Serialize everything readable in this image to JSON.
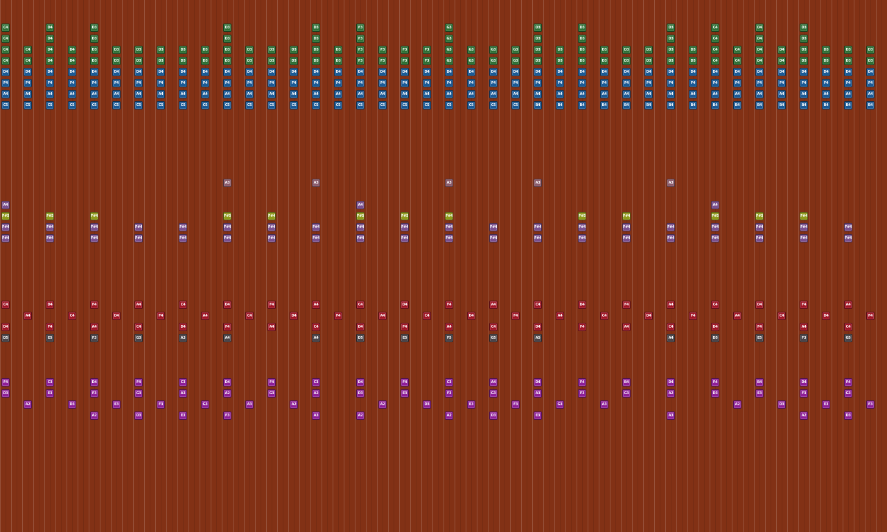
{
  "colors": {
    "background": "#823115",
    "green": "#2d7034",
    "blue": "#1a5a96",
    "olive": "#8e9a1a",
    "lavender": "#7a4f8e",
    "mauve": "#8a5a6a",
    "red": "#a11525",
    "gray": "#4a4347",
    "magenta": "#8e1e98"
  },
  "columns_per_screen": 40,
  "columns": [
    [
      "C4:green",
      "C4:green",
      "C4:green",
      "C4:green",
      "D4:blue",
      "F4:blue",
      "A4:blue",
      "C5:blue",
      "F#5:olive",
      "A4:lavender",
      "F#4:lavender",
      "F#4:lavender",
      "C4:red",
      "D4:red",
      "D5:gray",
      "F4:magenta",
      "D3:magenta"
    ],
    [
      "C4:green",
      "C4:green",
      "D4:blue",
      "F4:blue",
      "A4:blue",
      "C5:blue",
      "A4:red",
      "A2:magenta"
    ],
    [
      "D4:green",
      "D4:green",
      "D4:green",
      "D4:green",
      "D4:blue",
      "F4:blue",
      "A4:blue",
      "C5:blue",
      "F#5:olive",
      "F#4:lavender",
      "F#4:lavender",
      "D4:red",
      "F4:red",
      "E5:gray",
      "C3:magenta",
      "E3:magenta"
    ],
    [
      "D4:green",
      "D4:green",
      "D4:blue",
      "F4:blue",
      "A4:blue",
      "C5:blue",
      "C4:red",
      "D3:magenta"
    ],
    [
      "D3:green",
      "D3:green",
      "D3:green",
      "D3:green",
      "D4:blue",
      "F4:blue",
      "A4:blue",
      "C5:blue",
      "F#4:olive",
      "F#4:lavender",
      "F#4:lavender",
      "F4:red",
      "A4:red",
      "F3:gray",
      "D4:magenta",
      "F3:magenta",
      "A2:magenta"
    ],
    [
      "D3:green",
      "D3:green",
      "D4:blue",
      "F4:blue",
      "A4:blue",
      "C5:blue",
      "D4:red",
      "E3:magenta"
    ],
    [
      "D3:green",
      "D3:green",
      "D4:blue",
      "F4:blue",
      "A4:blue",
      "C5:blue",
      "F#4:lavender",
      "F#4:lavender",
      "A4:red",
      "C4:red",
      "G3:gray",
      "F4:magenta",
      "G3:magenta",
      "D3:magenta"
    ],
    [
      "D3:green",
      "D3:green",
      "D4:blue",
      "F4:blue",
      "A4:blue",
      "C5:blue",
      "F4:red",
      "F3:magenta"
    ],
    [
      "D3:green",
      "D3:green",
      "D4:blue",
      "F4:blue",
      "A4:blue",
      "C5:blue",
      "F#4:lavender",
      "F#4:lavender",
      "C4:red",
      "D4:red",
      "A3:gray",
      "C3:magenta",
      "A3:magenta",
      "E3:magenta"
    ],
    [
      "D3:green",
      "D3:green",
      "D4:blue",
      "F4:blue",
      "A4:blue",
      "C5:blue",
      "A4:red",
      "G3:magenta"
    ],
    [
      "D3:green",
      "D3:green",
      "D3:green",
      "D3:green",
      "D4:blue",
      "F4:blue",
      "A4:blue",
      "C5:blue",
      "A3:mauve",
      "F#5:olive",
      "F#4:lavender",
      "F#4:lavender",
      "D4:red",
      "F4:red",
      "A4:gray",
      "D4:magenta",
      "A2:magenta",
      "F3:magenta"
    ],
    [
      "D3:green",
      "D3:green",
      "D4:blue",
      "F4:blue",
      "A4:blue",
      "C5:blue",
      "C4:red",
      "A3:magenta"
    ],
    [
      "D3:green",
      "D3:green",
      "D4:blue",
      "F4:blue",
      "A4:blue",
      "C5:blue",
      "F#4:olive",
      "F#4:lavender",
      "F#4:lavender",
      "F4:red",
      "A4:red",
      "F4:magenta",
      "G3:magenta"
    ],
    [
      "D3:green",
      "D3:green",
      "D4:blue",
      "F4:blue",
      "A4:blue",
      "C5:blue",
      "D4:red",
      "A2:magenta"
    ],
    [
      "D3:green",
      "D3:green",
      "D3:green",
      "D3:green",
      "D4:blue",
      "F4:blue",
      "A4:blue",
      "C5:blue",
      "A3:mauve",
      "F#4:lavender",
      "F#4:lavender",
      "A4:red",
      "C4:red",
      "A4:gray",
      "C3:magenta",
      "A2:magenta",
      "A3:magenta"
    ],
    [
      "D3:green",
      "D3:green",
      "D4:blue",
      "F4:blue",
      "A4:blue",
      "C5:blue",
      "F4:red"
    ],
    [
      "F3:green",
      "F3:green",
      "F3:green",
      "F3:green",
      "D4:blue",
      "F4:blue",
      "A4:blue",
      "C5:blue",
      "F#5:olive",
      "A4:lavender",
      "F#4:lavender",
      "F#4:lavender",
      "C4:red",
      "D4:red",
      "D5:gray",
      "D4:magenta",
      "D3:magenta",
      "A2:magenta"
    ],
    [
      "F3:green",
      "F3:green",
      "D4:blue",
      "F4:blue",
      "A4:blue",
      "C5:blue",
      "A4:red",
      "A2:magenta"
    ],
    [
      "F3:green",
      "F3:green",
      "D4:blue",
      "F4:blue",
      "A4:blue",
      "C5:blue",
      "F#5:olive",
      "F#4:lavender",
      "F#4:lavender",
      "D4:red",
      "F4:red",
      "E5:gray",
      "F4:magenta",
      "E3:magenta"
    ],
    [
      "F3:green",
      "F3:green",
      "D4:blue",
      "F4:blue",
      "A4:blue",
      "C5:blue",
      "C4:red",
      "D3:magenta"
    ],
    [
      "G3:green",
      "G3:green",
      "G3:green",
      "G3:green",
      "D4:blue",
      "F4:blue",
      "A4:blue",
      "C5:blue",
      "A3:mauve",
      "F#4:olive",
      "F#4:lavender",
      "F#4:lavender",
      "F4:red",
      "A4:red",
      "F5:gray",
      "C3:magenta",
      "F3:magenta",
      "A2:magenta"
    ],
    [
      "G3:green",
      "G3:green",
      "D4:blue",
      "F4:blue",
      "A4:blue",
      "C5:blue",
      "D4:red",
      "E3:magenta"
    ],
    [
      "G3:green",
      "G3:green",
      "D4:blue",
      "F4:blue",
      "A4:blue",
      "C5:blue",
      "F#4:lavender",
      "F#4:lavender",
      "A4:red",
      "C4:red",
      "G5:gray",
      "A4:magenta",
      "G3:magenta",
      "D3:magenta"
    ],
    [
      "G3:green",
      "G3:green",
      "D4:blue",
      "F4:blue",
      "A4:blue",
      "C5:blue",
      "F4:red",
      "F3:magenta"
    ],
    [
      "D3:green",
      "D3:green",
      "D3:green",
      "D3:green",
      "D4:blue",
      "F4:blue",
      "A4:blue",
      "B4:blue",
      "A3:mauve",
      "F#4:lavender",
      "F#4:lavender",
      "C4:red",
      "D4:red",
      "A5:gray",
      "D4:magenta",
      "A3:magenta",
      "E3:magenta"
    ],
    [
      "D3:green",
      "D3:green",
      "D4:blue",
      "F4:blue",
      "A4:blue",
      "B4:blue",
      "A4:red",
      "G3:magenta"
    ],
    [
      "D3:green",
      "D3:green",
      "D3:green",
      "D3:green",
      "D4:blue",
      "F4:blue",
      "A4:blue",
      "B4:blue",
      "F#5:olive",
      "F#4:lavender",
      "F#4:lavender",
      "D4:red",
      "F4:red",
      "F4:magenta",
      "F3:magenta"
    ],
    [
      "D3:green",
      "D3:green",
      "D4:blue",
      "F4:blue",
      "A4:blue",
      "B4:blue",
      "C4:red",
      "A3:magenta"
    ],
    [
      "D3:green",
      "D3:green",
      "D4:blue",
      "F4:blue",
      "A4:blue",
      "B4:blue",
      "F#4:olive",
      "F#4:lavender",
      "F#4:lavender",
      "F4:red",
      "A4:red",
      "B4:magenta",
      "G3:magenta"
    ],
    [
      "D3:green",
      "D3:green",
      "D4:blue",
      "F4:blue",
      "A4:blue",
      "B4:blue",
      "D4:red"
    ],
    [
      "D3:green",
      "D3:green",
      "D3:green",
      "D3:green",
      "D4:blue",
      "F4:blue",
      "A4:blue",
      "B4:blue",
      "A3:mauve",
      "F#4:lavender",
      "F#4:lavender",
      "A4:red",
      "C4:red",
      "A4:gray",
      "D4:magenta",
      "A2:magenta",
      "A3:magenta"
    ],
    [
      "D3:green",
      "D3:green",
      "D4:blue",
      "F4:blue",
      "A4:blue",
      "B4:blue",
      "F4:red"
    ],
    [
      "C4:green",
      "C4:green",
      "C4:green",
      "C4:green",
      "D4:blue",
      "F4:blue",
      "A4:blue",
      "B4:blue",
      "F#5:olive",
      "A4:lavender",
      "F#4:lavender",
      "F#4:lavender",
      "C4:red",
      "D4:red",
      "D5:gray",
      "F4:magenta",
      "D3:magenta"
    ],
    [
      "C4:green",
      "C4:green",
      "D4:blue",
      "F4:blue",
      "A4:blue",
      "B4:blue",
      "A4:red",
      "A2:magenta"
    ],
    [
      "D4:green",
      "D4:green",
      "D4:green",
      "D4:green",
      "D4:blue",
      "F4:blue",
      "A4:blue",
      "B4:blue",
      "F#5:olive",
      "F#4:lavender",
      "F#4:lavender",
      "D4:red",
      "F4:red",
      "E5:gray",
      "B4:magenta",
      "E3:magenta"
    ],
    [
      "D4:green",
      "D4:green",
      "D4:blue",
      "F4:blue",
      "A4:blue",
      "B4:blue",
      "C4:red",
      "D3:magenta"
    ],
    [
      "D3:green",
      "D3:green",
      "D3:green",
      "D3:green",
      "D4:blue",
      "F4:blue",
      "A4:blue",
      "B4:blue",
      "F#4:olive",
      "F#4:lavender",
      "F#4:lavender",
      "F4:red",
      "A4:red",
      "F3:gray",
      "D4:magenta",
      "F3:magenta",
      "A2:magenta"
    ],
    [
      "D3:green",
      "D3:green",
      "D4:blue",
      "F4:blue",
      "A4:blue",
      "B4:blue",
      "D4:red",
      "E3:magenta"
    ],
    [
      "D3:green",
      "D3:green",
      "D4:blue",
      "F4:blue",
      "A4:blue",
      "B4:blue",
      "F#4:lavender",
      "F#4:lavender",
      "A4:red",
      "C4:red",
      "G5:gray",
      "F4:magenta",
      "G3:magenta",
      "D3:magenta"
    ],
    [
      "D3:green",
      "D3:green",
      "D4:blue",
      "F4:blue",
      "A4:blue",
      "B4:blue",
      "F4:red",
      "F3:magenta"
    ]
  ]
}
